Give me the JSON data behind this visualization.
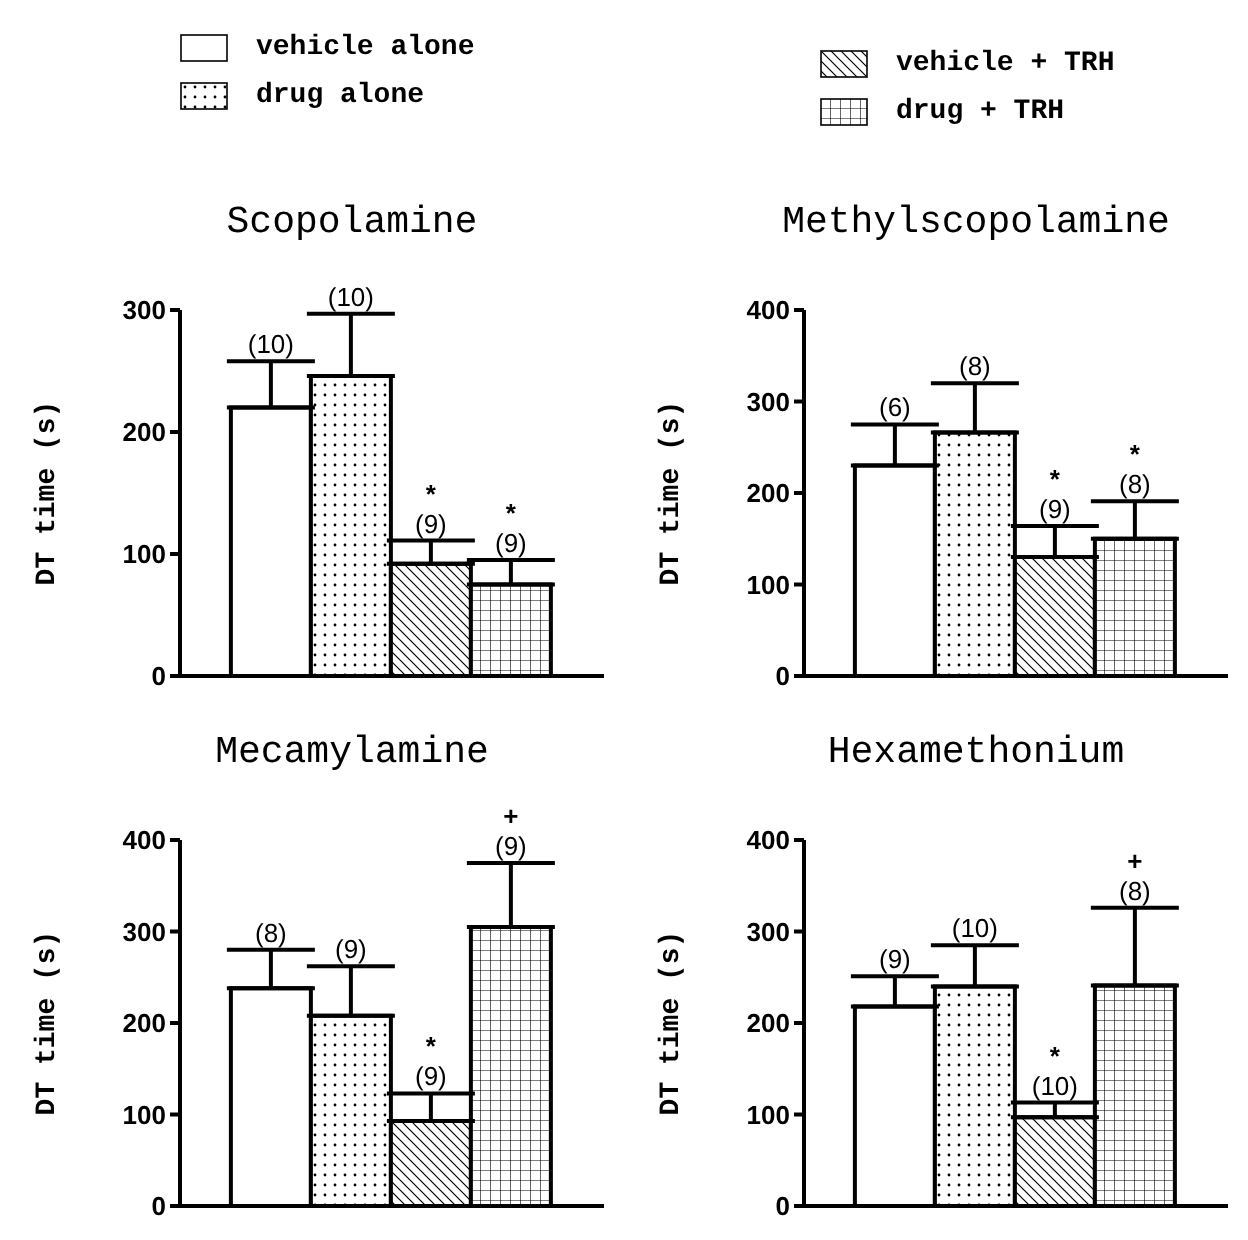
{
  "chart_data": [
    {
      "type": "bar",
      "title": "Scopolamine",
      "ylabel": "DT time (s)",
      "categories": [
        null
      ],
      "ylim": [
        0,
        300
      ],
      "yticks": [
        0,
        100,
        200,
        300
      ],
      "tick_labels": "y",
      "legend": "top",
      "series": [
        {
          "name": "vehicle alone",
          "color": "#ffffff",
          "values": [
            220
          ],
          "errors": [
            [
              220,
              258
            ]
          ]
        },
        {
          "name": "drug alone",
          "color": "#ffffff",
          "values": [
            246
          ],
          "errors": [
            [
              246,
              297
            ]
          ]
        },
        {
          "name": "vehicle + TRH",
          "color": "#ffffff",
          "values": [
            92
          ],
          "errors": [
            [
              92,
              111
            ]
          ]
        },
        {
          "name": "drug + TRH",
          "color": "#ffffff",
          "values": [
            75
          ],
          "errors": [
            [
              75,
              95
            ]
          ]
        }
      ],
      "annotations": [
        {
          "text": "(10)",
          "y": 258
        },
        {
          "text": "(10)",
          "y": 297
        },
        {
          "text": "*\n(9)",
          "y": 111
        },
        {
          "text": "*\n(9)",
          "y": 95
        }
      ]
    },
    {
      "type": "bar",
      "title": "Methylscopolamine",
      "ylabel": "DT time (s)",
      "categories": [
        null
      ],
      "ylim": [
        0,
        400
      ],
      "yticks": [
        0,
        100,
        200,
        300,
        400
      ],
      "tick_labels": "y",
      "series": [
        {
          "color": "#ffffff",
          "values": [
            230
          ],
          "errors": [
            [
              230,
              275
            ]
          ]
        },
        {
          "color": "#ffffff",
          "values": [
            266
          ],
          "errors": [
            [
              266,
              320
            ]
          ]
        },
        {
          "color": "#ffffff",
          "values": [
            130
          ],
          "errors": [
            [
              130,
              164
            ]
          ]
        },
        {
          "color": "#ffffff",
          "values": [
            150
          ],
          "errors": [
            [
              150,
              191
            ]
          ]
        }
      ],
      "annotations": [
        {
          "text": "(6)",
          "y": 275
        },
        {
          "text": "(8)",
          "y": 320
        },
        {
          "text": "*\n(9)",
          "y": 164
        },
        {
          "text": "*\n(8)",
          "y": 191
        }
      ]
    },
    {
      "type": "bar",
      "title": "Mecamylamine",
      "ylabel": "DT time (s)",
      "categories": [
        null
      ],
      "ylim": [
        0,
        400
      ],
      "yticks": [
        0,
        100,
        200,
        300,
        400
      ],
      "tick_labels": "y",
      "series": [
        {
          "color": "#ffffff",
          "values": [
            238
          ],
          "errors": [
            [
              238,
              280
            ]
          ]
        },
        {
          "color": "#ffffff",
          "values": [
            208
          ],
          "errors": [
            [
              208,
              262
            ]
          ]
        },
        {
          "color": "#ffffff",
          "values": [
            93
          ],
          "errors": [
            [
              93,
              123
            ]
          ]
        },
        {
          "color": "#ffffff",
          "values": [
            305
          ],
          "errors": [
            [
              305,
              375
            ]
          ]
        }
      ],
      "annotations": [
        {
          "text": "(8)",
          "y": 280
        },
        {
          "text": "(9)",
          "y": 262
        },
        {
          "text": "*\n(9)",
          "y": 123
        },
        {
          "text": "+\n(9)",
          "y": 375
        }
      ]
    },
    {
      "type": "bar",
      "title": "Hexamethonium",
      "ylabel": "DT time (s)",
      "categories": [
        null
      ],
      "ylim": [
        0,
        400
      ],
      "yticks": [
        0,
        100,
        200,
        300,
        400
      ],
      "tick_labels": "y",
      "series": [
        {
          "color": "#ffffff",
          "values": [
            218
          ],
          "errors": [
            [
              218,
              251
            ]
          ]
        },
        {
          "color": "#ffffff",
          "values": [
            240
          ],
          "errors": [
            [
              240,
              285
            ]
          ]
        },
        {
          "color": "#ffffff",
          "values": [
            97
          ],
          "errors": [
            [
              97,
              113
            ]
          ]
        },
        {
          "color": "#ffffff",
          "values": [
            241
          ],
          "errors": [
            [
              241,
              326
            ]
          ]
        }
      ],
      "annotations": [
        {
          "text": "(9)",
          "y": 251
        },
        {
          "text": "(10)",
          "y": 285
        },
        {
          "text": "*\n(10)",
          "y": 113
        },
        {
          "text": "+\n(8)",
          "y": 326
        }
      ]
    }
  ]
}
